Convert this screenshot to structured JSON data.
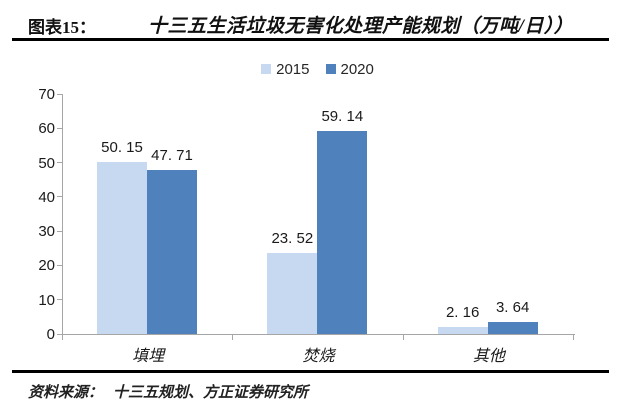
{
  "header": {
    "figure_label": "图表15：",
    "title": "十三五生活垃圾无害化处理产能规划（万吨/日））"
  },
  "footer": {
    "source_label": "资料来源：",
    "source_text": "十三五规划、方正证券研究所"
  },
  "colors": {
    "series_2015": "#C6D9F1",
    "series_2020": "#4F81BD",
    "axis_line": "#A6A6A6",
    "rule": "#000000",
    "text": "#1A1A1A"
  },
  "chart_data": {
    "type": "bar",
    "title": "十三五生活垃圾无害化处理产能规划（万吨/日）",
    "categories": [
      "填埋",
      "焚烧",
      "其他"
    ],
    "series": [
      {
        "name": "2015",
        "color": "#C6D9F1",
        "values": [
          50.15,
          23.52,
          2.16
        ],
        "value_labels": [
          "50. 15",
          "23. 52",
          "2. 16"
        ]
      },
      {
        "name": "2020",
        "color": "#4F81BD",
        "values": [
          47.71,
          59.14,
          3.64
        ],
        "value_labels": [
          "47. 71",
          "59. 14",
          "3. 64"
        ]
      }
    ],
    "xlabel": "",
    "ylabel": "",
    "ylim": [
      0,
      70
    ],
    "yticks": [
      0,
      10,
      20,
      30,
      40,
      50,
      60,
      70
    ],
    "legend_position": "top-center",
    "grid": false
  }
}
